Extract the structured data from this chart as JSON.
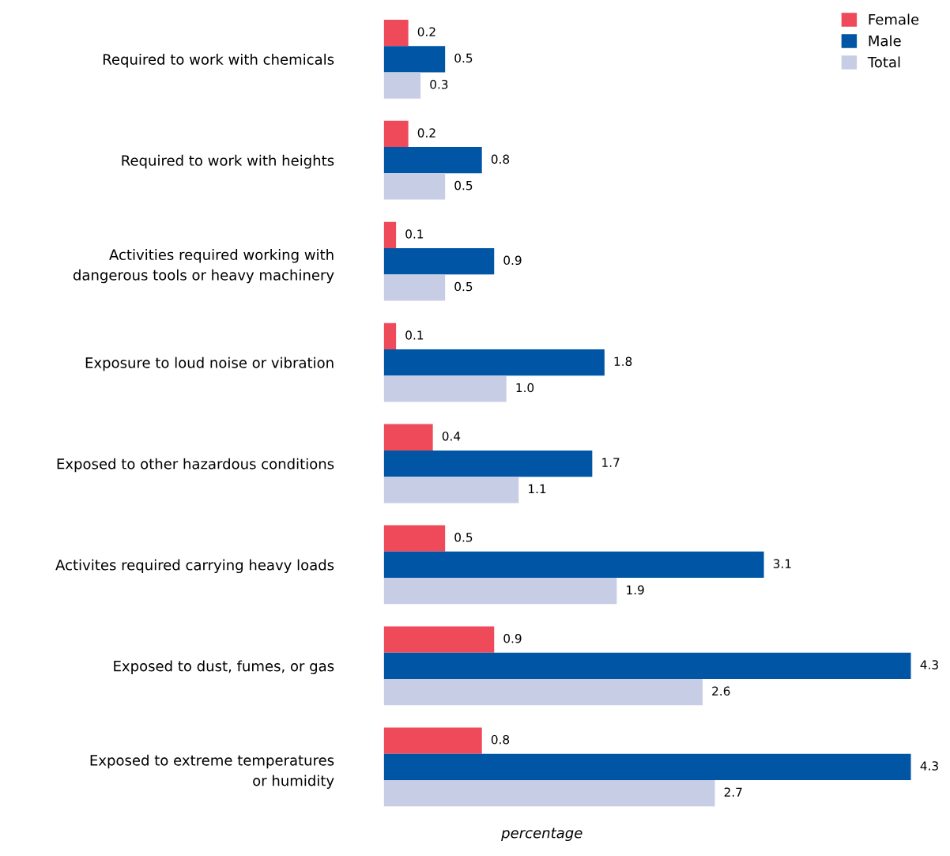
{
  "chart_data": {
    "type": "bar",
    "orientation": "horizontal",
    "xlabel": "percentage",
    "categories": [
      "Required to work with chemicals",
      "Required to work with heights",
      "Activities required working with\ndangerous tools or heavy machinery",
      "Exposure to loud noise or vibration",
      "Exposed to other hazardous conditions",
      "Activites required carrying heavy loads",
      "Exposed to dust, fumes, or gas",
      "Exposed to extreme temperatures\nor humidity"
    ],
    "series": [
      {
        "name": "Female",
        "color": "#ef4a5a",
        "values": [
          0.2,
          0.2,
          0.1,
          0.1,
          0.4,
          0.5,
          0.9,
          0.8
        ],
        "value_labels": [
          "0.2",
          "0.2",
          "0.1",
          "0.1",
          "0.4",
          "0.5",
          "0.9",
          "0.8"
        ]
      },
      {
        "name": "Male",
        "color": "#0055a5",
        "values": [
          0.5,
          0.8,
          0.9,
          1.8,
          1.7,
          3.1,
          4.3,
          4.3
        ],
        "value_labels": [
          "0.5",
          "0.8",
          "0.9",
          "1.8",
          "1.7",
          "3.1",
          "4.3",
          "4.3"
        ]
      },
      {
        "name": "Total",
        "color": "#c8cde6",
        "values": [
          0.3,
          0.5,
          0.5,
          1.0,
          1.1,
          1.9,
          2.6,
          2.7
        ],
        "value_labels": [
          "0.3",
          "0.5",
          "0.5",
          "1.0",
          "1.1",
          "1.9",
          "2.6",
          "2.7"
        ]
      }
    ],
    "legend": "top right",
    "grid": false
  }
}
